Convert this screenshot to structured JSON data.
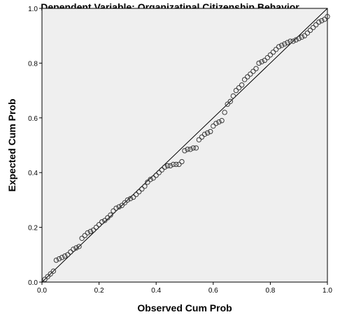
{
  "chart_data": {
    "type": "scatter",
    "title": "Dependent Variable: Organizatinal Citizenship Behavior",
    "xlabel": "Observed Cum Prob",
    "ylabel": "Expected Cum Prob",
    "xlim": [
      0,
      1
    ],
    "ylim": [
      0,
      1
    ],
    "x_ticks": [
      "0.0",
      "0.2",
      "0.4",
      "0.6",
      "0.8",
      "1.0"
    ],
    "y_ticks": [
      "0.0",
      "0.2",
      "0.4",
      "0.6",
      "0.8",
      "1.0"
    ],
    "grid": false,
    "reference_line": [
      [
        0,
        0
      ],
      [
        1,
        1
      ]
    ],
    "colors": {
      "plot_background": "#efefef",
      "points": "#3a3a3a",
      "line": "#000000"
    },
    "points": [
      [
        0.01,
        0.01
      ],
      [
        0.02,
        0.02
      ],
      [
        0.03,
        0.03
      ],
      [
        0.04,
        0.04
      ],
      [
        0.05,
        0.08
      ],
      [
        0.06,
        0.085
      ],
      [
        0.07,
        0.09
      ],
      [
        0.08,
        0.095
      ],
      [
        0.09,
        0.1
      ],
      [
        0.1,
        0.11
      ],
      [
        0.11,
        0.12
      ],
      [
        0.12,
        0.125
      ],
      [
        0.13,
        0.13
      ],
      [
        0.14,
        0.16
      ],
      [
        0.15,
        0.17
      ],
      [
        0.16,
        0.18
      ],
      [
        0.17,
        0.185
      ],
      [
        0.18,
        0.19
      ],
      [
        0.19,
        0.2
      ],
      [
        0.2,
        0.21
      ],
      [
        0.21,
        0.22
      ],
      [
        0.22,
        0.225
      ],
      [
        0.23,
        0.235
      ],
      [
        0.24,
        0.245
      ],
      [
        0.25,
        0.26
      ],
      [
        0.26,
        0.27
      ],
      [
        0.27,
        0.275
      ],
      [
        0.28,
        0.28
      ],
      [
        0.29,
        0.29
      ],
      [
        0.3,
        0.3
      ],
      [
        0.31,
        0.305
      ],
      [
        0.32,
        0.31
      ],
      [
        0.33,
        0.32
      ],
      [
        0.34,
        0.33
      ],
      [
        0.35,
        0.34
      ],
      [
        0.36,
        0.35
      ],
      [
        0.37,
        0.365
      ],
      [
        0.38,
        0.375
      ],
      [
        0.39,
        0.38
      ],
      [
        0.4,
        0.39
      ],
      [
        0.41,
        0.4
      ],
      [
        0.42,
        0.41
      ],
      [
        0.43,
        0.42
      ],
      [
        0.44,
        0.425
      ],
      [
        0.45,
        0.425
      ],
      [
        0.46,
        0.43
      ],
      [
        0.47,
        0.43
      ],
      [
        0.48,
        0.43
      ],
      [
        0.49,
        0.44
      ],
      [
        0.5,
        0.48
      ],
      [
        0.51,
        0.485
      ],
      [
        0.52,
        0.485
      ],
      [
        0.53,
        0.49
      ],
      [
        0.54,
        0.49
      ],
      [
        0.55,
        0.52
      ],
      [
        0.56,
        0.53
      ],
      [
        0.57,
        0.54
      ],
      [
        0.58,
        0.545
      ],
      [
        0.59,
        0.55
      ],
      [
        0.6,
        0.57
      ],
      [
        0.61,
        0.58
      ],
      [
        0.62,
        0.585
      ],
      [
        0.63,
        0.59
      ],
      [
        0.64,
        0.62
      ],
      [
        0.65,
        0.65
      ],
      [
        0.66,
        0.66
      ],
      [
        0.67,
        0.68
      ],
      [
        0.68,
        0.7
      ],
      [
        0.69,
        0.71
      ],
      [
        0.7,
        0.72
      ],
      [
        0.71,
        0.74
      ],
      [
        0.72,
        0.75
      ],
      [
        0.73,
        0.76
      ],
      [
        0.74,
        0.77
      ],
      [
        0.75,
        0.78
      ],
      [
        0.76,
        0.8
      ],
      [
        0.77,
        0.805
      ],
      [
        0.78,
        0.81
      ],
      [
        0.79,
        0.82
      ],
      [
        0.8,
        0.83
      ],
      [
        0.81,
        0.84
      ],
      [
        0.82,
        0.85
      ],
      [
        0.83,
        0.86
      ],
      [
        0.84,
        0.865
      ],
      [
        0.85,
        0.87
      ],
      [
        0.86,
        0.875
      ],
      [
        0.87,
        0.88
      ],
      [
        0.88,
        0.88
      ],
      [
        0.89,
        0.885
      ],
      [
        0.9,
        0.89
      ],
      [
        0.91,
        0.895
      ],
      [
        0.92,
        0.9
      ],
      [
        0.93,
        0.91
      ],
      [
        0.94,
        0.92
      ],
      [
        0.95,
        0.93
      ],
      [
        0.96,
        0.94
      ],
      [
        0.97,
        0.95
      ],
      [
        0.98,
        0.955
      ],
      [
        0.99,
        0.96
      ],
      [
        1.0,
        0.97
      ]
    ]
  }
}
